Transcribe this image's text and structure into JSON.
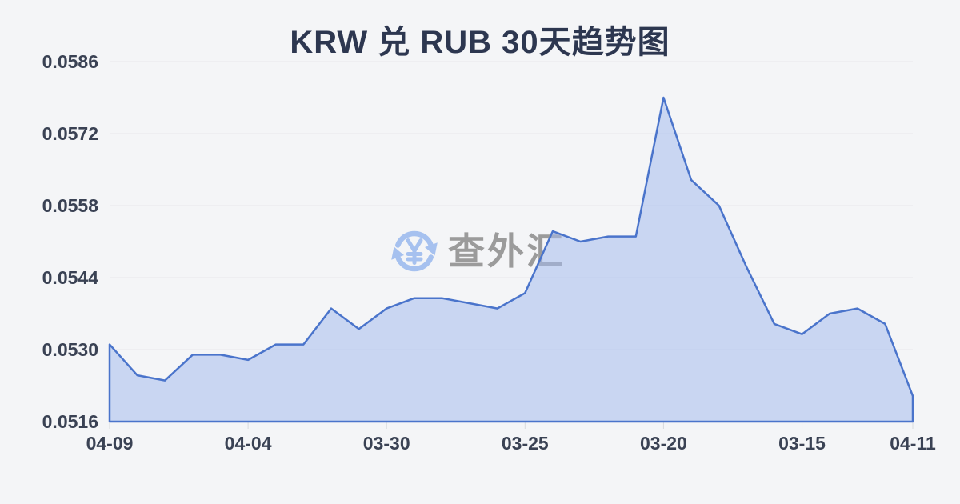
{
  "title": "KRW 兑 RUB 30天趋势图",
  "watermark": {
    "text": "查外汇",
    "icon": "currency-exchange-icon"
  },
  "colors": {
    "background": "#f4f5f7",
    "line": "#4a74cb",
    "area_fill": "rgba(165,188,238,0.55)",
    "gridline": "#e7e8eb",
    "tick": "#d8dade",
    "title_text": "#2d3750",
    "axis_text": "#3a4254",
    "watermark_text": "#9b9b9b",
    "watermark_icon": "#a6c1ef"
  },
  "chart_data": {
    "type": "area",
    "title": "KRW 兑 RUB 30天趋势图",
    "series_name": "KRW/RUB",
    "x": [
      "04-09",
      "04-08",
      "04-07",
      "04-06",
      "04-05",
      "04-04",
      "04-03",
      "04-02",
      "04-01",
      "03-31",
      "03-30",
      "03-29",
      "03-28",
      "03-27",
      "03-26",
      "03-25",
      "03-24",
      "03-23",
      "03-22",
      "03-21",
      "03-20",
      "03-19",
      "03-18",
      "03-17",
      "03-16",
      "03-15",
      "03-14",
      "03-13",
      "03-12",
      "04-11"
    ],
    "values": [
      0.0531,
      0.0525,
      0.0524,
      0.0529,
      0.0529,
      0.0528,
      0.0531,
      0.0531,
      0.0538,
      0.0534,
      0.0538,
      0.054,
      0.054,
      0.0539,
      0.0538,
      0.0541,
      0.0553,
      0.0551,
      0.0552,
      0.0552,
      0.0579,
      0.0563,
      0.0558,
      0.0546,
      0.0535,
      0.0533,
      0.0537,
      0.0538,
      0.0535,
      0.0521
    ],
    "x_tick_labels": [
      "04-09",
      "04-04",
      "03-30",
      "03-25",
      "03-20",
      "03-15",
      "04-11"
    ],
    "x_tick_indices": [
      0,
      5,
      10,
      15,
      20,
      25,
      29
    ],
    "y_ticks": [
      "0.0586",
      "0.0572",
      "0.0558",
      "0.0544",
      "0.0530",
      "0.0516"
    ],
    "ylim": [
      0.0516,
      0.0586
    ],
    "grid": true,
    "legend": false
  }
}
